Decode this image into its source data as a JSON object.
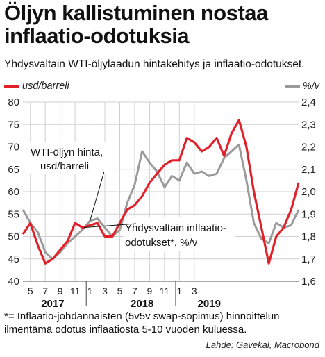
{
  "title": {
    "line1": "Öljyn kallistuminen nostaa",
    "line2": "inflaatio-odotuksia"
  },
  "subtitle": "Yhdysvaltain WTI-öljylaadun hintakehitys ja inflaatio-odotukset.",
  "legend": {
    "left": "usd/barreli",
    "right": "%/v"
  },
  "annotations": {
    "oil_line1": "WTI-öljyn hinta,",
    "oil_line2": "usd/barreli",
    "infl_line1": "Yhdysvaltain inflaatio-",
    "infl_line2": "odotukset*, %/v"
  },
  "footnote": "*= Inflaatio-johdannaisten (5v5v swap-sopimus) hinnoittelun ilmentämä odotus inflaatiosta 5-10 vuoden kuluessa.",
  "source": "Lähde: Gavekal, Macrobond",
  "colors": {
    "oil": "#e2202a",
    "inflation": "#9a9a9a",
    "grid": "#cfcfcf"
  },
  "chart_data": {
    "type": "line",
    "left_axis": {
      "ylim": [
        40,
        80
      ],
      "ticks": [
        "40",
        "45",
        "50",
        "55",
        "60",
        "65",
        "70",
        "75",
        "80"
      ]
    },
    "right_axis": {
      "ylim": [
        1.6,
        2.4
      ],
      "ticks": [
        "1,6",
        "1,7",
        "1,8",
        "1,9",
        "2,0",
        "2,1",
        "2,2",
        "2,3",
        "2,4"
      ]
    },
    "x_axis": {
      "start": "2016-04",
      "end": "2019-05",
      "month_labels": [
        {
          "date": "2016-05",
          "label": "5"
        },
        {
          "date": "2016-07",
          "label": "7"
        },
        {
          "date": "2016-09",
          "label": "9"
        },
        {
          "date": "2016-11",
          "label": "11"
        },
        {
          "date": "2017-01",
          "label": "1"
        },
        {
          "date": "2017-03",
          "label": "3"
        },
        {
          "date": "2017-05",
          "label": "5"
        },
        {
          "date": "2017-07",
          "label": "7"
        },
        {
          "date": "2017-09",
          "label": "9"
        },
        {
          "date": "2017-11",
          "label": "11"
        },
        {
          "date": "2018-01",
          "label": "1"
        },
        {
          "date": "2018-03",
          "label": "3"
        }
      ],
      "year_labels": [
        {
          "date": "2016-08",
          "label": "2017"
        },
        {
          "date": "2017-08",
          "label": "2018"
        },
        {
          "date": "2018-05",
          "label": "2019"
        }
      ]
    },
    "grid": true,
    "series": [
      {
        "name": "WTI-öljyn hinta, usd/barreli",
        "axis": "left",
        "x": [
          "2016-04",
          "2016-05",
          "2016-06",
          "2016-07",
          "2016-08",
          "2016-09",
          "2016-10",
          "2016-11",
          "2016-12",
          "2017-01",
          "2017-02",
          "2017-03",
          "2017-04",
          "2017-05",
          "2017-06",
          "2017-07",
          "2017-08",
          "2017-09",
          "2017-10",
          "2017-11",
          "2017-12",
          "2018-01",
          "2018-02",
          "2018-03",
          "2018-04",
          "2018-05",
          "2018-06",
          "2018-07",
          "2018-08",
          "2018-09",
          "2018-10",
          "2018-11",
          "2018-12",
          "2019-01",
          "2019-02",
          "2019-03",
          "2019-04",
          "2019-05"
        ],
        "values": [
          50.5,
          53,
          48,
          44,
          45,
          47,
          49,
          53,
          52,
          52.5,
          53,
          50,
          50,
          53,
          56,
          57,
          59,
          62,
          64,
          66,
          67,
          67,
          72,
          71,
          69,
          70,
          72,
          68,
          73,
          76,
          70,
          60,
          52,
          44,
          50,
          52,
          56,
          62
        ]
      },
      {
        "name": "Yhdysvaltain inflaatio-odotukset*, %/v",
        "axis": "right",
        "x": [
          "2016-04",
          "2016-05",
          "2016-06",
          "2016-07",
          "2016-08",
          "2016-09",
          "2016-10",
          "2016-11",
          "2016-12",
          "2017-01",
          "2017-02",
          "2017-03",
          "2017-04",
          "2017-05",
          "2017-06",
          "2017-07",
          "2017-08",
          "2017-09",
          "2017-10",
          "2017-11",
          "2017-12",
          "2018-01",
          "2018-02",
          "2018-03",
          "2018-04",
          "2018-05",
          "2018-06",
          "2018-07",
          "2018-08",
          "2018-09",
          "2018-10",
          "2018-11",
          "2018-12",
          "2019-01",
          "2019-02",
          "2019-03",
          "2019-04",
          "2019-05"
        ],
        "values": [
          1.92,
          1.86,
          1.82,
          1.73,
          1.7,
          1.73,
          1.77,
          1.8,
          1.83,
          1.87,
          1.88,
          1.84,
          1.8,
          1.83,
          1.95,
          2.03,
          2.18,
          2.13,
          2.09,
          2.02,
          2.07,
          2.05,
          2.13,
          2.08,
          2.09,
          2.07,
          2.08,
          2.15,
          2.18,
          2.21,
          2.05,
          1.86,
          1.79,
          1.77,
          1.86,
          1.84,
          1.85,
          1.92
        ]
      }
    ]
  }
}
